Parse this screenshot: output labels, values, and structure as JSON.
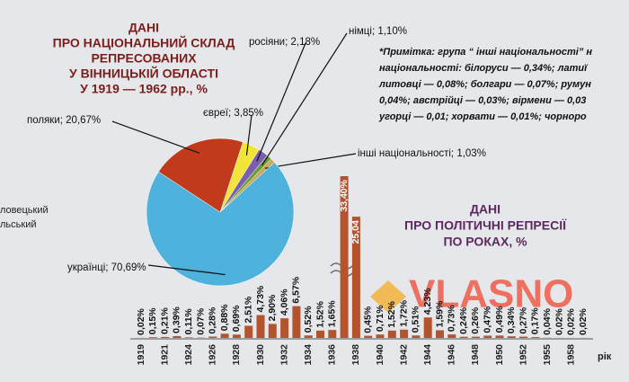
{
  "chart_data": [
    {
      "type": "pie",
      "title": [
        "ДАНІ",
        "ПРО НАЦІОНАЛЬНИЙ СКЛАД",
        "РЕПРЕСОВАНИХ",
        "У ВІННИЦЬКІЙ ОБЛАСТІ",
        "У 1919 — 1962 рр., %"
      ],
      "categories": [
        "євреї",
        "росіяни",
        "німці",
        "інші національності",
        "українці",
        "поляки"
      ],
      "values": [
        3.85,
        2.18,
        1.1,
        1.03,
        70.69,
        20.67
      ],
      "value_labels": [
        "євреї; 3,85%",
        "росіяни; 2,18%",
        "німці; 1,10%",
        "інші національності; 1,03%",
        "українці; 70,69%",
        "поляки; 20,67%"
      ],
      "colors": [
        "#f3e43a",
        "#7b5fae",
        "#6b9a3a",
        "#c9a85a",
        "#4fb2dc",
        "#c13a1c"
      ],
      "note": [
        "*Примітка: група “ інші національності” н",
        "національності: білоруси — 0,34%; латиї",
        "литовці — 0,08%; болгари — 0,07%; румун",
        "0,04%; австрійці — 0,03%; вірмени — 0,03",
        "угорці — 0,01; хорвати — 0,01%; чорноро"
      ]
    },
    {
      "type": "bar",
      "title": [
        "ДАНІ",
        "ПРО ПОЛІТИЧНІ РЕПРЕСІЇ",
        "ПО РОКАХ, %"
      ],
      "x_label": "рік",
      "categories": [
        "1919",
        null,
        "1921",
        null,
        "1924",
        null,
        "1926",
        null,
        "1928",
        null,
        "1930",
        null,
        "1932",
        null,
        "1934",
        null,
        "1936",
        null,
        "1938",
        null,
        "1940",
        null,
        "1942",
        null,
        "1944",
        null,
        "1946",
        null,
        "1948",
        null,
        "1950",
        null,
        "1952",
        null,
        "1955",
        null,
        "1958",
        null
      ],
      "values": [
        0.02,
        0.15,
        0.21,
        0.39,
        0.11,
        0.07,
        0.28,
        0.88,
        0.69,
        2.51,
        4.73,
        2.9,
        4.06,
        6.57,
        0.52,
        1.52,
        1.65,
        33.4,
        25.04,
        0.45,
        0.71,
        1.52,
        1.72,
        0.51,
        4.23,
        1.59,
        0.73,
        0.24,
        0.26,
        0.47,
        0.49,
        0.34,
        0.27,
        0.17,
        0.04,
        0.02,
        0.02,
        0.02
      ],
      "value_labels": [
        "0,02%",
        "0,15%",
        "0,21%",
        "0,39%",
        "0,11%",
        "0,07%",
        "0,28%",
        "0,88%",
        "0,69%",
        "2,51%",
        "4,73%",
        "2,90%",
        "4,06%",
        "6,57%",
        "0,52%",
        "1,52%",
        "1,65%",
        "33,40%",
        "25,04",
        "0,45%",
        "0,71%",
        "1,52%",
        "1,72%",
        "0,51%",
        "4,23%",
        "1,59%",
        "0,73%",
        "0,24%",
        "0,26%",
        "0,47%",
        "0,49%",
        "0,34%",
        "0,27%",
        "0,17%",
        "0,04%",
        "0,02%",
        "0,02%",
        "0,02%"
      ],
      "color": "#b4542f"
    }
  ],
  "left_fragments": [
    "ловецький",
    "льський"
  ],
  "watermark": "VLASNO"
}
